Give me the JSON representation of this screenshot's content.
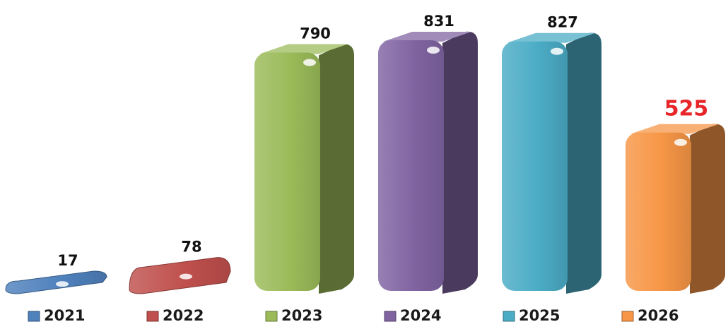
{
  "chart_data": {
    "type": "bar",
    "categories": [
      "2021",
      "2022",
      "2023",
      "2024",
      "2025",
      "2026"
    ],
    "values": [
      17,
      78,
      790,
      831,
      827,
      525
    ],
    "colors": [
      "#4f81bd",
      "#c0504d",
      "#9bbb59",
      "#8064a2",
      "#4bacc6",
      "#f79646"
    ],
    "highlight_color": "#e8262a",
    "highlighted_category": "2026",
    "ylim": [
      0,
      831
    ],
    "grid": false,
    "legend_position": "bottom",
    "title": "",
    "xlabel": "",
    "ylabel": ""
  }
}
